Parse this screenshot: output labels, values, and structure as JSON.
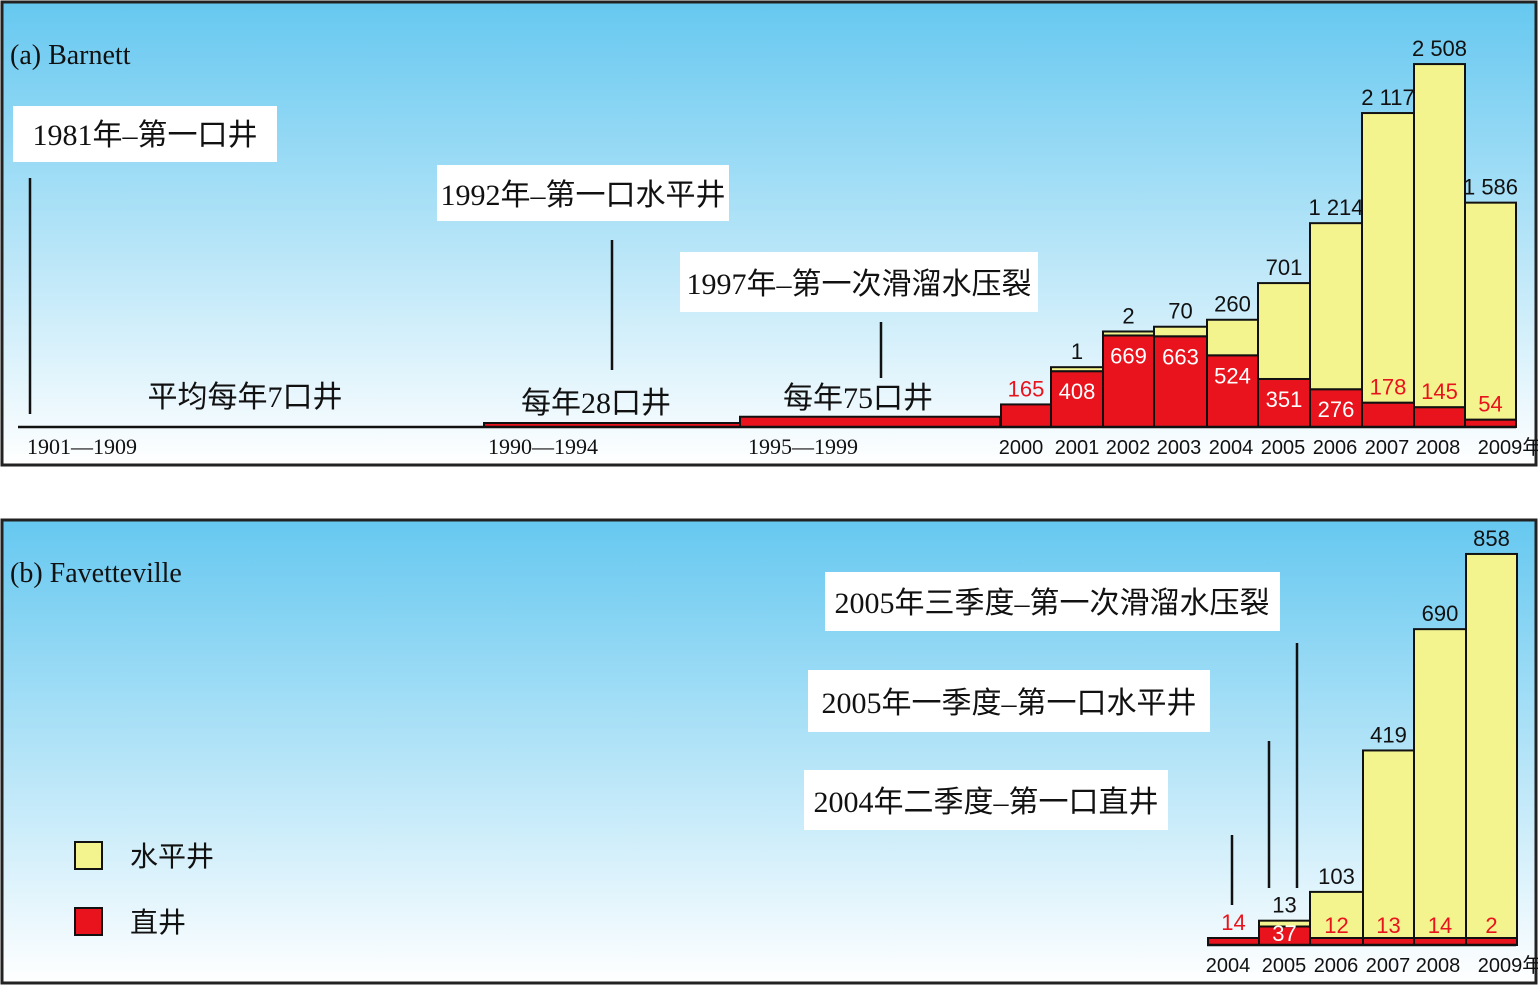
{
  "colors": {
    "horizontal": "#f4f48e",
    "vertical": "#e8131c",
    "vertical_label": "#e8131c",
    "panel_top": "#66c8f0",
    "panel_bottom": "#ffffff"
  },
  "chart_data": [
    {
      "type": "bar",
      "stacked": true,
      "title": "(a) Barnett",
      "x_unit": "年",
      "series_names": [
        "水平井",
        "直井"
      ],
      "categories": [
        "1901—1909",
        "1990—1994",
        "1995—1999",
        "2000",
        "2001",
        "2002",
        "2003",
        "2004",
        "2005",
        "2006",
        "2007",
        "2008",
        "2009"
      ],
      "horizontal": [
        null,
        null,
        null,
        null,
        1,
        2,
        70,
        260,
        701,
        1214,
        2117,
        2508,
        1586
      ],
      "vertical": [
        7,
        28,
        75,
        165,
        408,
        669,
        663,
        524,
        351,
        276,
        178,
        145,
        54
      ],
      "horizontal_labels": [
        "",
        "",
        "",
        "",
        "1",
        "2",
        "70",
        "260",
        "701",
        "1 214",
        "2 117",
        "2 508",
        "1 586"
      ],
      "vertical_labels": [
        "",
        "",
        "",
        "165",
        "408",
        "669",
        "663",
        "524",
        "351",
        "276",
        "178",
        "145",
        "54"
      ],
      "period_labels": [
        "平均每年7口井",
        "每年28口井",
        "每年75口井"
      ],
      "annotations": [
        "1981年–第一口井",
        "1992年–第一口水平井",
        "1997年–第一次滑溜水压裂"
      ]
    },
    {
      "type": "bar",
      "stacked": true,
      "title": "(b) Favetteville",
      "x_unit": "年",
      "series_names": [
        "水平井",
        "直井"
      ],
      "categories": [
        "2004",
        "2005",
        "2006",
        "2007",
        "2008",
        "2009"
      ],
      "horizontal": [
        null,
        13,
        103,
        419,
        690,
        858
      ],
      "vertical": [
        14,
        37,
        12,
        13,
        14,
        2
      ],
      "horizontal_labels": [
        "",
        "13",
        "103",
        "419",
        "690",
        "858"
      ],
      "vertical_labels": [
        "14",
        "37",
        "12",
        "13",
        "14",
        "2"
      ],
      "annotations": [
        "2005年三季度–第一次滑溜水压裂",
        "2005年一季度–第一口水平井",
        "2004年二季度–第一口直井"
      ]
    }
  ],
  "legend": {
    "horizontal_label": "水平井",
    "vertical_label": "直井"
  }
}
